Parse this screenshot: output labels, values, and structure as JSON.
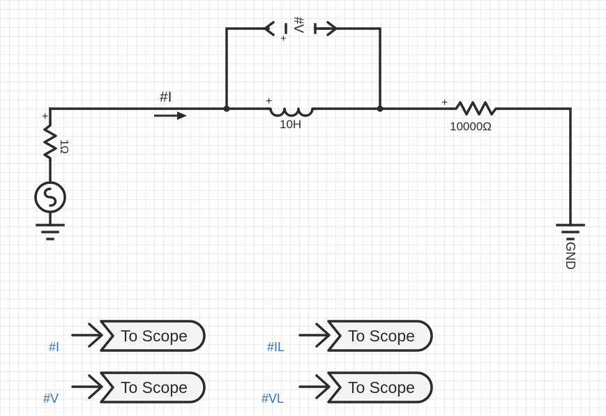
{
  "circuit": {
    "current_probe_label": "#I",
    "voltage_probe_label": "#V",
    "source_resistor_label": "1Ω",
    "inductor_label": "10H",
    "load_resistor_label": "10000Ω",
    "ground_label": "GND",
    "plus_sign": "+"
  },
  "scopes": [
    {
      "tag": "#I",
      "label": "To Scope"
    },
    {
      "tag": "#IL",
      "label": "To Scope"
    },
    {
      "tag": "#V",
      "label": "To Scope"
    },
    {
      "tag": "#VL",
      "label": "To Scope"
    }
  ]
}
